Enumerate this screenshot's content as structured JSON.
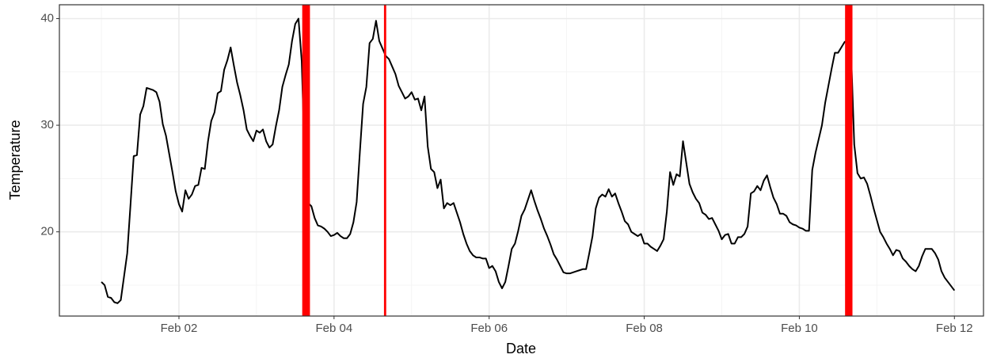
{
  "chart_data": {
    "type": "line",
    "x_label": "Date",
    "y_label": "Temperature",
    "color": "#000000",
    "x": [
      0,
      1,
      2,
      3,
      4,
      5,
      6,
      7,
      8,
      9,
      10,
      11,
      12,
      13,
      14,
      15,
      16,
      17,
      18,
      19,
      20,
      21,
      22,
      23,
      24,
      25,
      26,
      27,
      28,
      29,
      30,
      31,
      32,
      33,
      34,
      35,
      36,
      37,
      38,
      39,
      40,
      41,
      42,
      43,
      44,
      45,
      46,
      47,
      48,
      49,
      50,
      51,
      52,
      53,
      54,
      55,
      56,
      57,
      58,
      59,
      60,
      61,
      62,
      63,
      64,
      65,
      66,
      67,
      68,
      69,
      70,
      71,
      72,
      73,
      74,
      75,
      76,
      77,
      78,
      79,
      80,
      81,
      82,
      83,
      84,
      85,
      86,
      87,
      88,
      89,
      90,
      91,
      92,
      93,
      94,
      95,
      96,
      97,
      98,
      99,
      100,
      101,
      102,
      103,
      104,
      105,
      106,
      107,
      108,
      109,
      110,
      111,
      112,
      113,
      114,
      115,
      116,
      117,
      118,
      119,
      120,
      121,
      122,
      123,
      124,
      125,
      126,
      127,
      128,
      129,
      130,
      131,
      132,
      133,
      134,
      135,
      136,
      137,
      138,
      139,
      140,
      141,
      142,
      143,
      144,
      145,
      146,
      147,
      148,
      149,
      150,
      151,
      152,
      153,
      154,
      155,
      156,
      157,
      158,
      159,
      160,
      161,
      162,
      163,
      164,
      165,
      166,
      167,
      168,
      169,
      170,
      171,
      172,
      173,
      174,
      175,
      176,
      177,
      178,
      179,
      180,
      181,
      182,
      183,
      184,
      185,
      186,
      187,
      188,
      189,
      190,
      191,
      192,
      193,
      194,
      195,
      196,
      197,
      198,
      199,
      200,
      201,
      202,
      203,
      204,
      205,
      206,
      207,
      208,
      209,
      210,
      211,
      212,
      213,
      214,
      215,
      216,
      217,
      218,
      219,
      220,
      221,
      222,
      223,
      224,
      225,
      226,
      227,
      228,
      229,
      230,
      231,
      232,
      233,
      234,
      235,
      236,
      237,
      238,
      239,
      240,
      241,
      242,
      243,
      244,
      245,
      246,
      247,
      248,
      249,
      250,
      251,
      252,
      253,
      254,
      255,
      256,
      257,
      258,
      259,
      260,
      261,
      262,
      263,
      264
    ],
    "values": [
      15.3,
      15.0,
      13.9,
      13.8,
      13.4,
      13.3,
      13.6,
      15.8,
      18.0,
      22.5,
      27.1,
      27.2,
      31.0,
      31.8,
      33.5,
      33.4,
      33.3,
      33.1,
      32.2,
      30.1,
      29.0,
      27.3,
      25.6,
      23.8,
      22.6,
      21.9,
      23.9,
      23.1,
      23.5,
      24.3,
      24.4,
      26.0,
      25.9,
      28.5,
      30.4,
      31.2,
      33.0,
      33.2,
      35.2,
      36.1,
      37.3,
      35.6,
      34.0,
      32.8,
      31.4,
      29.6,
      29.0,
      28.5,
      29.5,
      29.3,
      29.6,
      28.5,
      27.9,
      28.2,
      29.9,
      31.4,
      33.6,
      34.7,
      35.7,
      37.9,
      39.5,
      40.0,
      36.0,
      26.0,
      22.7,
      22.4,
      21.3,
      20.6,
      20.5,
      20.3,
      20.0,
      19.6,
      19.7,
      19.9,
      19.6,
      19.4,
      19.4,
      19.8,
      20.9,
      22.8,
      27.5,
      32.0,
      33.6,
      37.7,
      38.1,
      39.8,
      37.9,
      37.2,
      36.5,
      36.2,
      35.5,
      34.8,
      33.7,
      33.1,
      32.5,
      32.7,
      33.1,
      32.4,
      32.5,
      31.4,
      32.7,
      28.0,
      25.9,
      25.6,
      24.1,
      24.9,
      22.2,
      22.7,
      22.5,
      22.7,
      21.8,
      20.9,
      19.8,
      18.9,
      18.2,
      17.8,
      17.6,
      17.6,
      17.5,
      17.5,
      16.6,
      16.8,
      16.3,
      15.3,
      14.7,
      15.3,
      16.8,
      18.4,
      18.9,
      20.1,
      21.5,
      22.1,
      23.0,
      23.9,
      22.9,
      22.0,
      21.2,
      20.3,
      19.6,
      18.8,
      17.9,
      17.4,
      16.8,
      16.2,
      16.1,
      16.1,
      16.2,
      16.3,
      16.4,
      16.5,
      16.5,
      18.0,
      19.6,
      22.2,
      23.2,
      23.5,
      23.3,
      24.0,
      23.3,
      23.6,
      22.7,
      21.9,
      21.0,
      20.7,
      20.0,
      19.8,
      19.6,
      19.8,
      18.9,
      18.9,
      18.6,
      18.4,
      18.2,
      18.7,
      19.3,
      21.9,
      25.6,
      24.4,
      25.4,
      25.2,
      28.5,
      26.5,
      24.5,
      23.7,
      23.1,
      22.7,
      21.8,
      21.6,
      21.2,
      21.3,
      20.7,
      20.1,
      19.3,
      19.7,
      19.8,
      18.9,
      18.9,
      19.5,
      19.5,
      19.8,
      20.5,
      23.6,
      23.8,
      24.3,
      23.9,
      24.8,
      25.3,
      24.2,
      23.2,
      22.6,
      21.7,
      21.7,
      21.5,
      20.9,
      20.7,
      20.6,
      20.4,
      20.3,
      20.1,
      20.1,
      25.8,
      27.4,
      28.7,
      30.0,
      32.1,
      33.7,
      35.3,
      36.8,
      36.8,
      37.3,
      37.8,
      38.0,
      37.0,
      28.2,
      25.5,
      25.0,
      25.1,
      24.5,
      23.4,
      22.2,
      21.1,
      20.0,
      19.5,
      18.9,
      18.4,
      17.8,
      18.3,
      18.2,
      17.5,
      17.2,
      16.8,
      16.5,
      16.3,
      16.8,
      17.7,
      18.4,
      18.4,
      18.4,
      18.0,
      17.4,
      16.3,
      15.7,
      15.3,
      14.9,
      14.5
    ],
    "bands": [
      {
        "start": 62.4,
        "end": 64.3
      },
      {
        "start": 87.7,
        "end": 87.9
      },
      {
        "start": 230.4,
        "end": 232.2
      }
    ],
    "band_color": "#ff0000",
    "xlim": [
      -13,
      273
    ],
    "xticks": [
      {
        "value": 24,
        "label": "Feb 02"
      },
      {
        "value": 72,
        "label": "Feb 04"
      },
      {
        "value": 120,
        "label": "Feb 06"
      },
      {
        "value": 168,
        "label": "Feb 08"
      },
      {
        "value": 216,
        "label": "Feb 10"
      },
      {
        "value": 264,
        "label": "Feb 12"
      }
    ],
    "ylim": [
      12.1,
      41.3
    ],
    "yticks": [
      20,
      30,
      40
    ],
    "grid": true
  }
}
